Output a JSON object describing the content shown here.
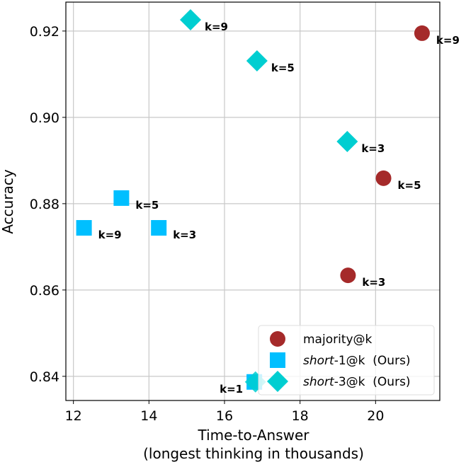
{
  "chart_data": {
    "type": "scatter",
    "title": "",
    "xlabel": "Time-to-Answer",
    "xlabel_line2": "(longest thinking in thousands)",
    "ylabel": "Accuracy",
    "xlim": [
      11.8,
      21.7
    ],
    "ylim": [
      0.8344,
      0.9267
    ],
    "xticks": [
      12,
      14,
      16,
      18,
      20
    ],
    "yticks": [
      0.84,
      0.86,
      0.88,
      0.9,
      0.92
    ],
    "ytick_labels": [
      "0.84",
      "0.86",
      "0.88",
      "0.90",
      "0.92"
    ],
    "grid": true,
    "legend_placement": "bottom-right",
    "series": [
      {
        "name": "majority@k",
        "name_italic": "",
        "name_rest": "majority@k",
        "marker": "circle",
        "color": "#a52a2a",
        "points": [
          {
            "x": 21.23,
            "y": 0.9195,
            "label": "k=9"
          },
          {
            "x": 20.21,
            "y": 0.8859,
            "label": "k=5"
          },
          {
            "x": 19.27,
            "y": 0.8634,
            "label": "k=3"
          }
        ]
      },
      {
        "name": "short-1@k  (Ours)",
        "name_italic": "short",
        "name_rest": "-1@k  (Ours)",
        "marker": "square",
        "color": "#00bfff",
        "points": [
          {
            "x": 12.28,
            "y": 0.8744,
            "label": "k=9"
          },
          {
            "x": 13.27,
            "y": 0.8813,
            "label": "k=5"
          },
          {
            "x": 14.26,
            "y": 0.8744,
            "label": "k=3"
          },
          {
            "x": 16.79,
            "y": 0.8387,
            "label": "k=1"
          }
        ]
      },
      {
        "name": "short-3@k  (Ours)",
        "name_italic": "short",
        "name_rest": "-3@k  (Ours)",
        "marker": "diamond",
        "color": "#00ced1",
        "points": [
          {
            "x": 15.1,
            "y": 0.9226,
            "label": "k=9"
          },
          {
            "x": 16.86,
            "y": 0.9131,
            "label": "k=5"
          },
          {
            "x": 19.25,
            "y": 0.8944,
            "label": "k=3"
          },
          {
            "x": 16.82,
            "y": 0.8387,
            "label": ""
          }
        ]
      }
    ]
  }
}
